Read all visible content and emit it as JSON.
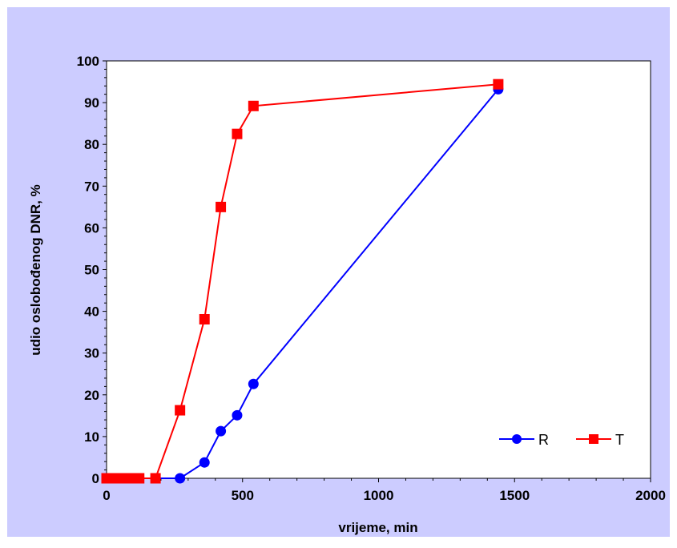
{
  "chart_data": {
    "type": "line",
    "title": "",
    "xlabel": "vrijeme, min",
    "ylabel": "udio oslobođenog DNR, %",
    "xlim": [
      0,
      2000
    ],
    "ylim": [
      0,
      100
    ],
    "x_ticks": [
      0,
      500,
      1000,
      1500,
      2000
    ],
    "y_ticks": [
      0,
      10,
      20,
      30,
      40,
      50,
      60,
      70,
      80,
      90,
      100
    ],
    "grid": false,
    "legend_position": "bottom-right",
    "series": [
      {
        "name": "R",
        "color": "#0000FF",
        "marker": "circle",
        "x": [
          0,
          15,
          30,
          45,
          60,
          75,
          90,
          120,
          180,
          270,
          360,
          420,
          480,
          540,
          1440
        ],
        "y": [
          0,
          0,
          0,
          0,
          0,
          0,
          0,
          0,
          0,
          0,
          3.8,
          11.3,
          15.1,
          22.6,
          93.2
        ]
      },
      {
        "name": "T",
        "color": "#FF0000",
        "marker": "square",
        "x": [
          0,
          15,
          30,
          45,
          60,
          75,
          90,
          120,
          180,
          270,
          360,
          420,
          480,
          540,
          1440
        ],
        "y": [
          0,
          0,
          0,
          0,
          0,
          0,
          0,
          0,
          0,
          16.3,
          38.1,
          65.0,
          82.5,
          89.2,
          94.4
        ]
      }
    ]
  },
  "colors": {
    "outer_background": "#CCCCFF",
    "plot_background": "#FFFFFF",
    "axis": "#000000"
  }
}
